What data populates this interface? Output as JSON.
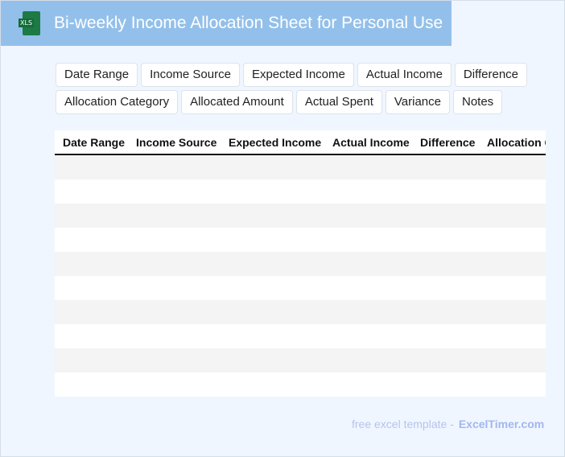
{
  "header": {
    "title": "Bi-weekly Income Allocation Sheet for Personal Use",
    "icon": "xls-file-icon",
    "icon_label": "XLS"
  },
  "chips": [
    "Date Range",
    "Income Source",
    "Expected Income",
    "Actual Income",
    "Difference",
    "Allocation Category",
    "Allocated Amount",
    "Actual Spent",
    "Variance",
    "Notes"
  ],
  "table": {
    "columns": [
      "Date Range",
      "Income Source",
      "Expected Income",
      "Actual Income",
      "Difference",
      "Allocation Category"
    ],
    "rows": 10
  },
  "footer": {
    "text": "free excel template -",
    "brand": "ExcelTimer.com"
  },
  "colors": {
    "banner": "#93c0ea",
    "background": "#f0f6ff",
    "xls_green": "#1d7a45"
  }
}
